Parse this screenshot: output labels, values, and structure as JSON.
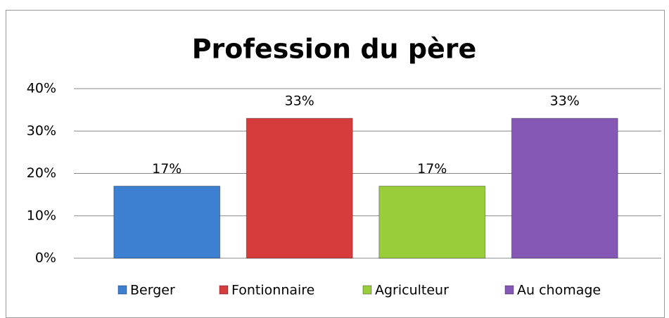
{
  "chart_data": {
    "type": "bar",
    "title": "Profession du père",
    "categories": [
      "Berger",
      "Fontionnaire",
      "Agriculteur",
      "Au chomage"
    ],
    "values": [
      17,
      33,
      17,
      33
    ],
    "value_labels": [
      "17%",
      "33%",
      "17%",
      "33%"
    ],
    "colors": [
      "#3d7fd1",
      "#d63c3c",
      "#9acd3a",
      "#8658b6"
    ],
    "ylim": [
      0,
      40
    ],
    "yticks": [
      {
        "value": 0,
        "label": "0%"
      },
      {
        "value": 10,
        "label": "10%"
      },
      {
        "value": 20,
        "label": "20%"
      },
      {
        "value": 30,
        "label": "30%"
      },
      {
        "value": 40,
        "label": "40%"
      }
    ],
    "grid": true,
    "legend": "bottom"
  }
}
